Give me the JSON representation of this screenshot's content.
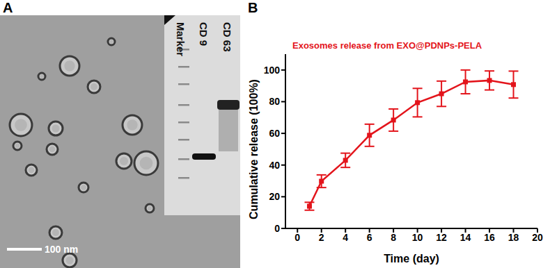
{
  "panel_a": {
    "label": "A",
    "scale_bar": "100 nm",
    "inset_lanes": [
      "Marker",
      "CD 9",
      "CD 63"
    ]
  },
  "chart_data": {
    "type": "line",
    "panel_label": "B",
    "title": "Exosomes release from EXO@PDNPs-PELA",
    "x_label": "Time (day)",
    "y_label": "Cumulative release (100%)",
    "x": [
      1,
      2,
      4,
      6,
      8,
      10,
      12,
      14,
      16,
      18
    ],
    "values": [
      14,
      29.8,
      43,
      58.8,
      68.4,
      79.4,
      85,
      92.5,
      93.4,
      90.8
    ],
    "errors": [
      2.5,
      4,
      4.5,
      7,
      7,
      9,
      8,
      7.5,
      6,
      8.5
    ],
    "color": "#e3141b",
    "marker": "square",
    "xlim": [
      -1,
      20
    ],
    "xticks": [
      0,
      2,
      4,
      6,
      8,
      10,
      12,
      14,
      16,
      18,
      20
    ],
    "ylim": [
      0,
      110
    ],
    "yticks": [
      0,
      20,
      40,
      60,
      80,
      100
    ],
    "grid": false
  }
}
